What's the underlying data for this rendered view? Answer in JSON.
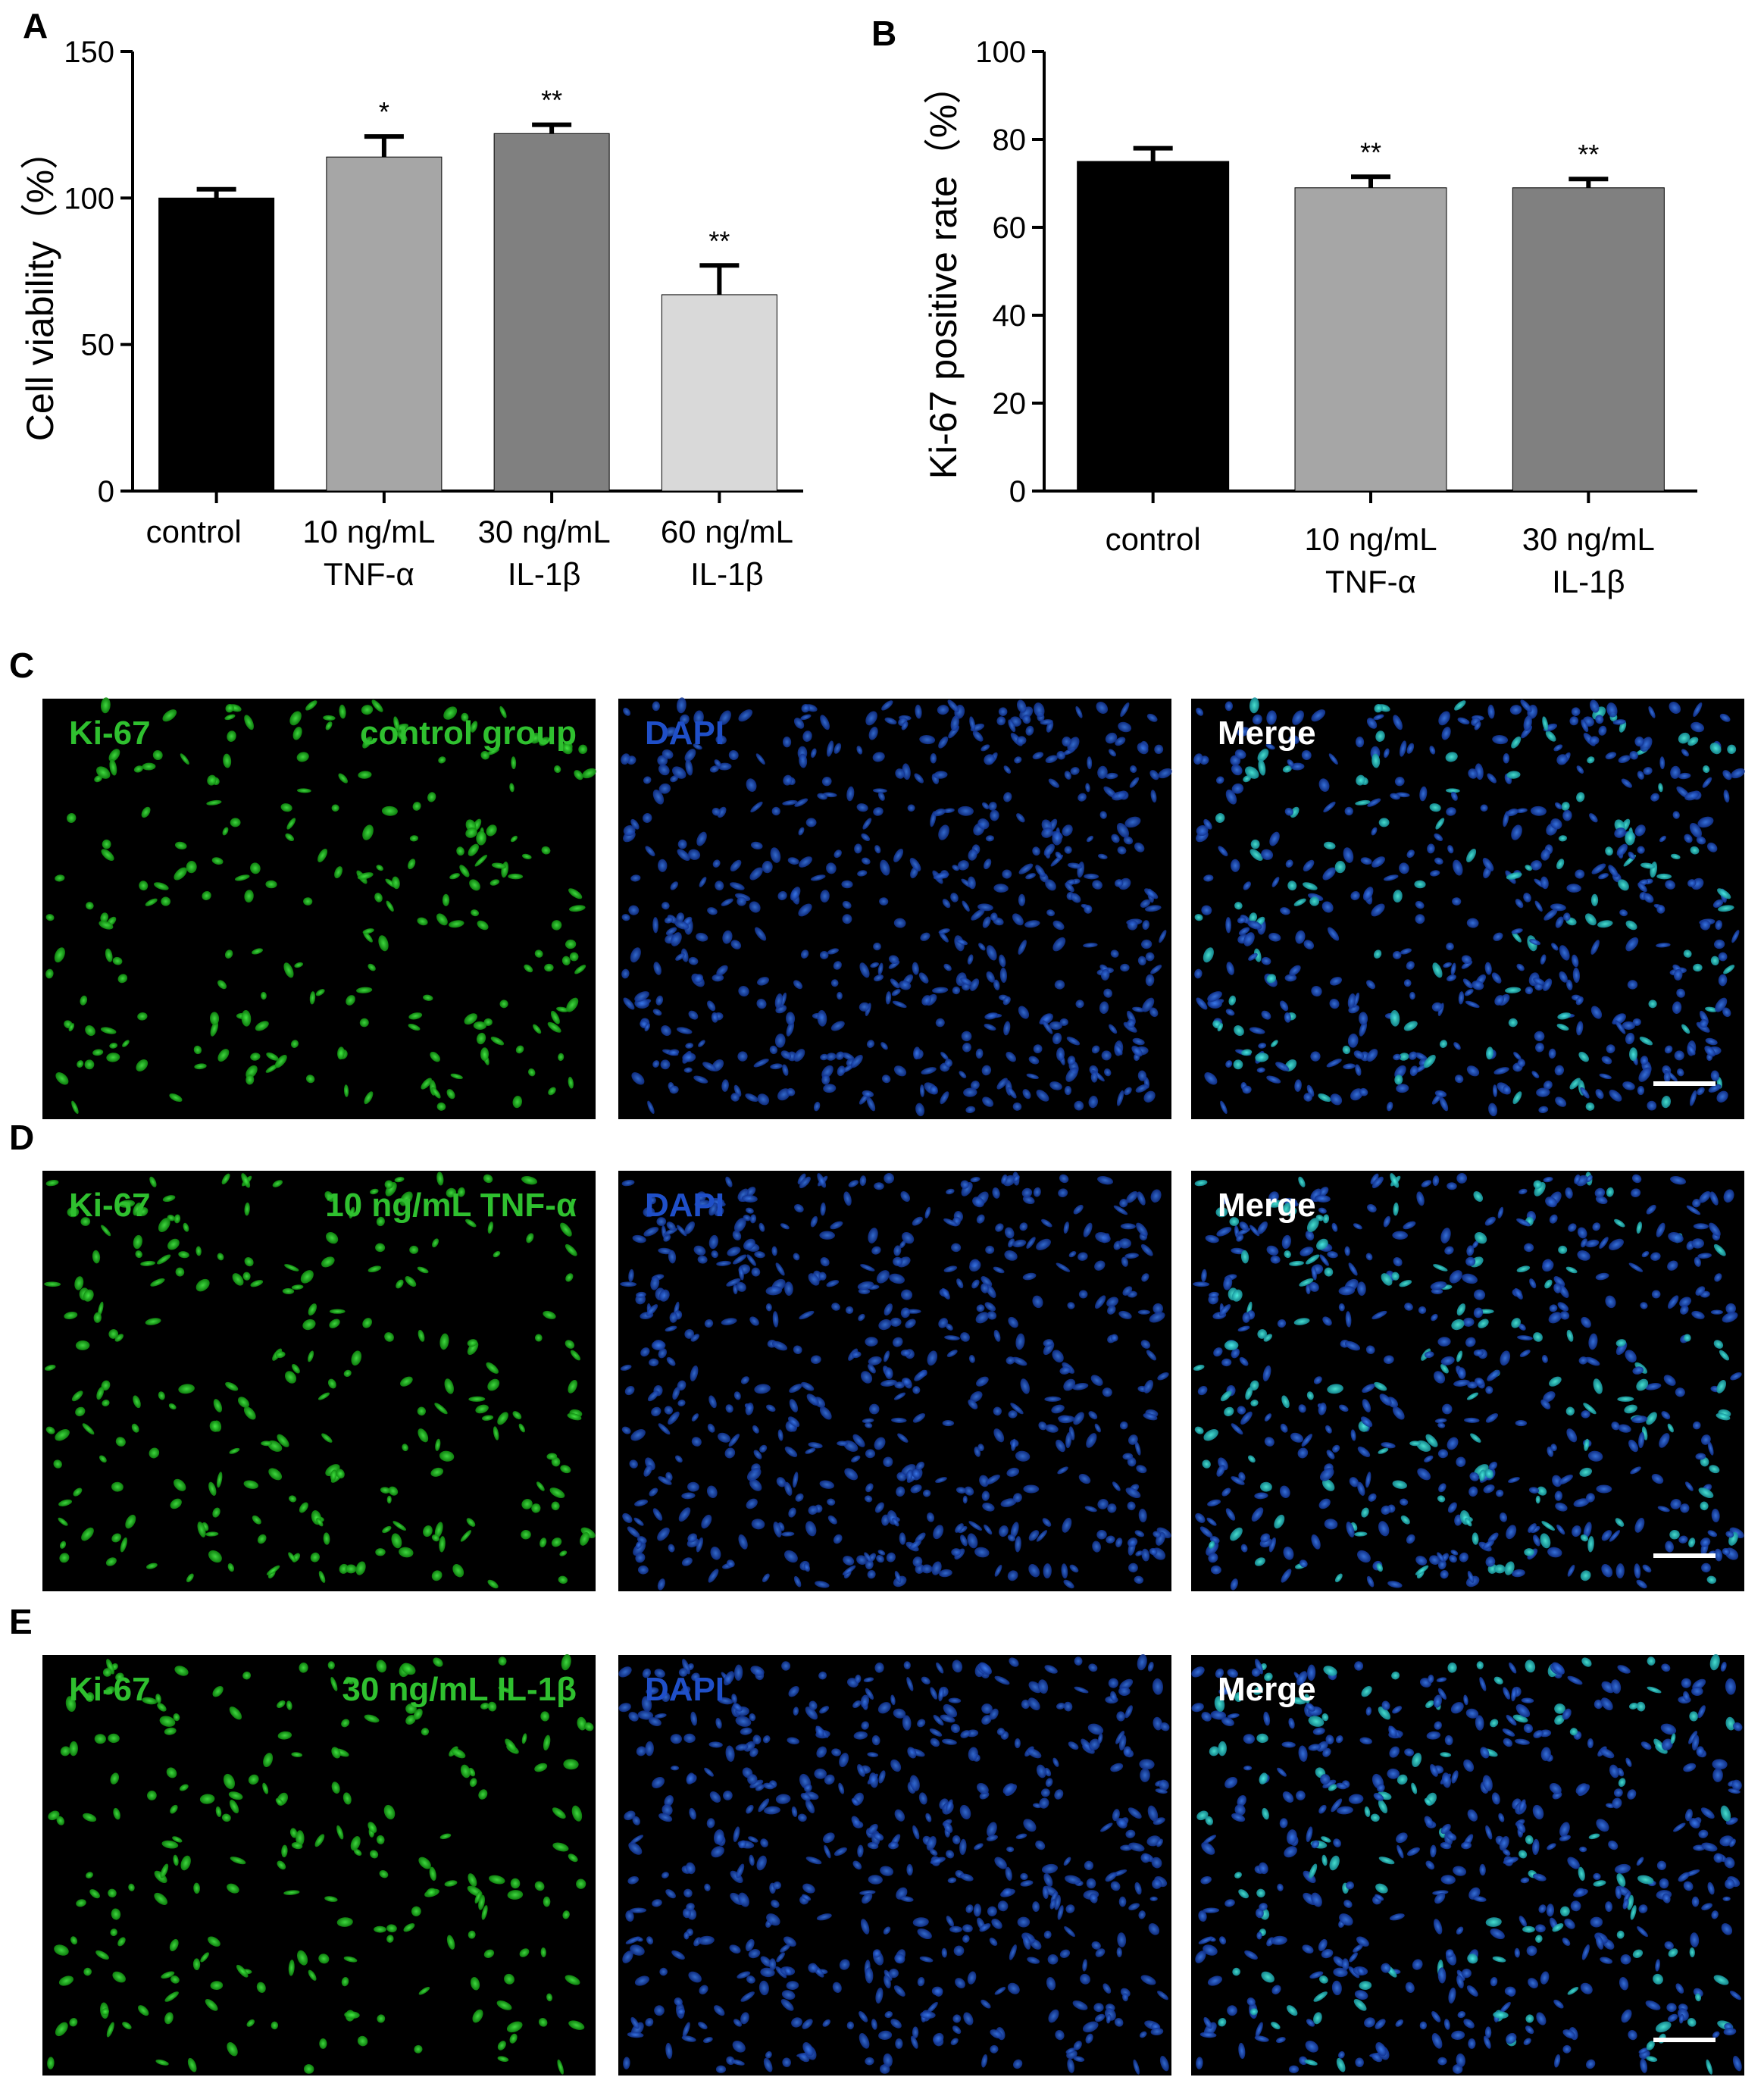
{
  "chart_data": [
    {
      "panel": "A",
      "type": "bar",
      "categories": [
        {
          "line1": "control",
          "line2": ""
        },
        {
          "line1": "10 ng/mL",
          "line2": "TNF-α"
        },
        {
          "line1": "30 ng/mL",
          "line2": "IL-1β"
        },
        {
          "line1": "60 ng/mL",
          "line2": "IL-1β"
        }
      ],
      "values": [
        100,
        114,
        122,
        67
      ],
      "errors": [
        3,
        7,
        3,
        10
      ],
      "significance": [
        "",
        "*",
        "**",
        "**"
      ],
      "colors": [
        "#000000",
        "#a6a6a6",
        "#808080",
        "#d9d9d9"
      ],
      "ylabel": "Cell viability（%）",
      "ylim": [
        0,
        150
      ],
      "yticks": [
        "0",
        "50",
        "100",
        "150"
      ]
    },
    {
      "panel": "B",
      "type": "bar",
      "categories": [
        {
          "line1": "control",
          "line2": ""
        },
        {
          "line1": "10 ng/mL",
          "line2": "TNF-α"
        },
        {
          "line1": "30 ng/mL",
          "line2": "IL-1β"
        }
      ],
      "values": [
        75,
        69,
        69
      ],
      "errors": [
        3,
        2.5,
        2
      ],
      "significance": [
        "",
        "**",
        "**"
      ],
      "colors": [
        "#000000",
        "#a6a6a6",
        "#808080"
      ],
      "ylabel": "Ki-67 positive rate（%）",
      "ylim": [
        0,
        100
      ],
      "yticks": [
        "0",
        "20",
        "40",
        "60",
        "80",
        "100"
      ]
    }
  ],
  "micrographs": {
    "rows": [
      {
        "panel": "C",
        "ki67": "Ki-67",
        "group": "control group",
        "dapi": "DAPI",
        "merge": "Merge"
      },
      {
        "panel": "D",
        "ki67": "Ki-67",
        "group": "10 ng/mL TNF-α",
        "dapi": "DAPI",
        "merge": "Merge"
      },
      {
        "panel": "E",
        "ki67": "Ki-67",
        "group": "30 ng/mL IL-1β",
        "dapi": "DAPI",
        "merge": "Merge"
      }
    ],
    "label_colors": {
      "ki67": "#2fc02f",
      "dapi": "#1f4fc8",
      "merge": "#ffffff"
    },
    "stain_colors": {
      "ki67": "#1fd51f",
      "dapi": "#2a66e0",
      "merge": "#2bd7c8"
    }
  }
}
